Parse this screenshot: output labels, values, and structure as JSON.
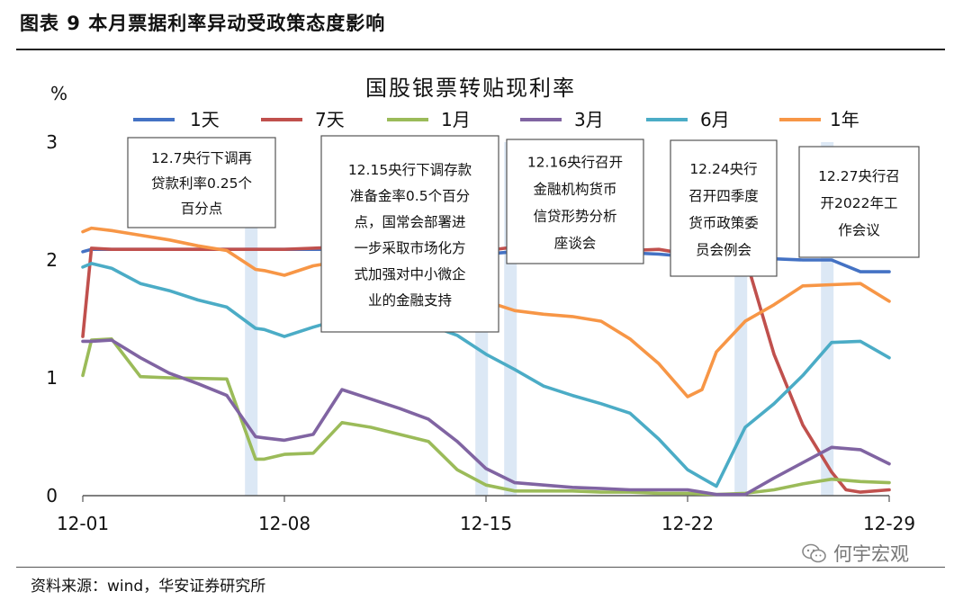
{
  "figure": {
    "title": "图表 9  本月票据利率异动受政策态度影响",
    "source": "资料来源：wind，华安证券研究所",
    "watermark": "何宇宏观"
  },
  "chart_data": {
    "type": "line",
    "title": "国股银票转贴现利率",
    "ylabel": "%",
    "ylim": [
      0,
      3
    ],
    "yticks": [
      "0",
      "1",
      "2",
      "3"
    ],
    "xlim": [
      0,
      28
    ],
    "xticks": [
      {
        "label": "12-01",
        "x": 0
      },
      {
        "label": "12-08",
        "x": 7
      },
      {
        "label": "12-15",
        "x": 14
      },
      {
        "label": "12-22",
        "x": 21
      },
      {
        "label": "12-29",
        "x": 28
      }
    ],
    "legend_position": "top",
    "series": [
      {
        "name": "1天",
        "color": "#4472C4",
        "x": [
          0,
          0.3,
          1,
          2,
          3,
          5,
          6,
          7,
          8,
          9,
          10,
          11,
          12,
          13,
          14,
          14.5,
          15,
          16,
          17,
          18,
          19,
          20,
          21,
          22,
          23,
          24,
          25,
          26,
          27,
          28
        ],
        "y": [
          2.07,
          2.09,
          2.09,
          2.09,
          2.09,
          2.09,
          2.09,
          2.09,
          2.09,
          2.09,
          2.08,
          2.07,
          2.07,
          2.07,
          2.05,
          2.06,
          2.07,
          2.06,
          2.06,
          2.06,
          2.06,
          2.05,
          2.03,
          2.02,
          2.01,
          2.01,
          2.0,
          2.0,
          1.9,
          1.9
        ]
      },
      {
        "name": "7天",
        "color": "#C0504D",
        "x": [
          0,
          0.3,
          1,
          2,
          3,
          5,
          6,
          7,
          8,
          9,
          10,
          11,
          12,
          13,
          14,
          15,
          16,
          17,
          18,
          19,
          20,
          21,
          21.5,
          22,
          22.5,
          23,
          24,
          25,
          26,
          26.5,
          27,
          28
        ],
        "y": [
          1.35,
          2.1,
          2.09,
          2.09,
          2.09,
          2.09,
          2.09,
          2.09,
          2.1,
          2.11,
          2.11,
          2.11,
          2.1,
          2.09,
          2.08,
          2.11,
          2.1,
          2.08,
          2.08,
          2.08,
          2.09,
          2.05,
          2.09,
          2.12,
          2.05,
          2.03,
          1.2,
          0.6,
          0.2,
          0.05,
          0.03,
          0.05
        ]
      },
      {
        "name": "1月",
        "color": "#9BBB59",
        "x": [
          0,
          0.3,
          1,
          2,
          3,
          5,
          6,
          6.3,
          7,
          8,
          9,
          10,
          11,
          12,
          13,
          14,
          15,
          16,
          17,
          18,
          19,
          20,
          21,
          22,
          23,
          24,
          25,
          26,
          27,
          28
        ],
        "y": [
          1.02,
          1.32,
          1.33,
          1.01,
          1.0,
          0.99,
          0.31,
          0.31,
          0.35,
          0.36,
          0.62,
          0.58,
          0.52,
          0.46,
          0.22,
          0.09,
          0.04,
          0.04,
          0.04,
          0.03,
          0.03,
          0.02,
          0.02,
          0.01,
          0.02,
          0.05,
          0.1,
          0.14,
          0.12,
          0.11
        ]
      },
      {
        "name": "3月",
        "color": "#8064A2",
        "x": [
          0,
          0.3,
          1,
          2,
          3,
          4,
          5,
          6,
          6.3,
          7,
          8,
          9,
          10,
          11,
          12,
          13,
          14,
          15,
          16,
          17,
          18,
          19,
          20,
          21,
          22,
          23,
          24,
          25,
          26,
          27,
          28
        ],
        "y": [
          1.31,
          1.31,
          1.32,
          1.17,
          1.04,
          0.95,
          0.85,
          0.5,
          0.49,
          0.47,
          0.52,
          0.9,
          0.82,
          0.74,
          0.65,
          0.46,
          0.23,
          0.11,
          0.09,
          0.07,
          0.06,
          0.05,
          0.05,
          0.05,
          0.01,
          0.01,
          0.15,
          0.28,
          0.41,
          0.39,
          0.27
        ]
      },
      {
        "name": "6月",
        "color": "#4BACC6",
        "x": [
          0,
          0.3,
          1,
          2,
          3,
          4,
          5,
          6,
          6.3,
          7,
          8,
          9,
          10,
          11,
          12,
          13,
          14,
          15,
          16,
          17,
          18,
          19,
          20,
          21,
          21.5,
          22,
          23,
          24,
          25,
          26,
          27,
          28
        ],
        "y": [
          1.94,
          1.97,
          1.93,
          1.8,
          1.74,
          1.66,
          1.6,
          1.42,
          1.41,
          1.35,
          1.43,
          1.5,
          1.49,
          1.47,
          1.45,
          1.36,
          1.2,
          1.07,
          0.93,
          0.85,
          0.78,
          0.7,
          0.48,
          0.22,
          0.15,
          0.08,
          0.58,
          0.78,
          1.02,
          1.3,
          1.31,
          1.17
        ]
      },
      {
        "name": "1年",
        "color": "#F79646",
        "x": [
          0,
          0.3,
          1,
          2,
          3,
          4,
          5,
          6,
          6.3,
          7,
          8,
          9,
          10,
          11,
          12,
          13,
          14,
          15,
          16,
          17,
          18,
          19,
          20,
          21,
          21.5,
          22,
          23,
          24,
          25,
          26,
          27,
          28
        ],
        "y": [
          2.24,
          2.27,
          2.25,
          2.21,
          2.17,
          2.12,
          2.08,
          1.92,
          1.91,
          1.87,
          1.95,
          1.99,
          1.97,
          1.93,
          1.82,
          1.72,
          1.65,
          1.57,
          1.54,
          1.52,
          1.48,
          1.33,
          1.12,
          0.84,
          0.9,
          1.22,
          1.48,
          1.62,
          1.78,
          1.79,
          1.8,
          1.65
        ]
      }
    ],
    "highlight_days": [
      5.85,
      13.85,
      14.85,
      22.85,
      25.85
    ],
    "annotations": [
      {
        "lines": [
          "12.7央行下调再",
          "贷款利率0.25个",
          "百分点"
        ]
      },
      {
        "lines": [
          "12.15央行下调存款",
          "准备金率0.5个百分",
          "点，国常会部署进",
          "一步采取市场化方",
          "式加强对中小微企",
          "业的金融支持"
        ]
      },
      {
        "lines": [
          "12.16央行召开",
          "金融机构货币",
          "信贷形势分析",
          "座谈会"
        ]
      },
      {
        "lines": [
          "12.24央行",
          "召开四季度",
          "货币政策委",
          "员会例会"
        ]
      },
      {
        "lines": [
          "12.27央行召",
          "开2022年工",
          "作会议"
        ]
      }
    ]
  }
}
